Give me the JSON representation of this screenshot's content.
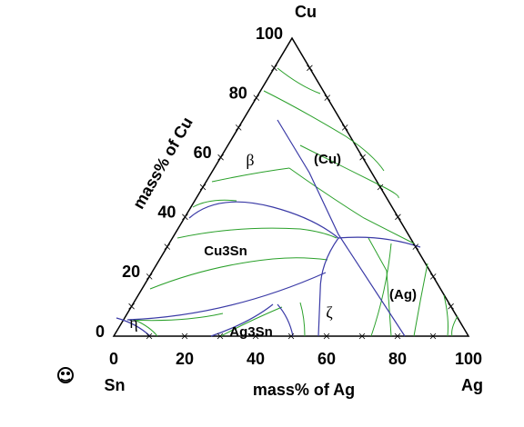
{
  "diagram": {
    "apex_labels": {
      "top": "Cu",
      "left": "Sn",
      "right": "Ag"
    },
    "axis_labels": {
      "bottom": "mass% of Ag",
      "left": "mass% of Cu"
    },
    "bottom_ticks": [
      0,
      20,
      40,
      60,
      80,
      100
    ],
    "left_ticks": [
      0,
      20,
      40,
      60,
      80,
      100
    ],
    "phases": [
      "β",
      "(Cu)",
      "Cu3Sn",
      "(Ag)",
      "ζ",
      "η",
      "Ag3Sn"
    ]
  }
}
